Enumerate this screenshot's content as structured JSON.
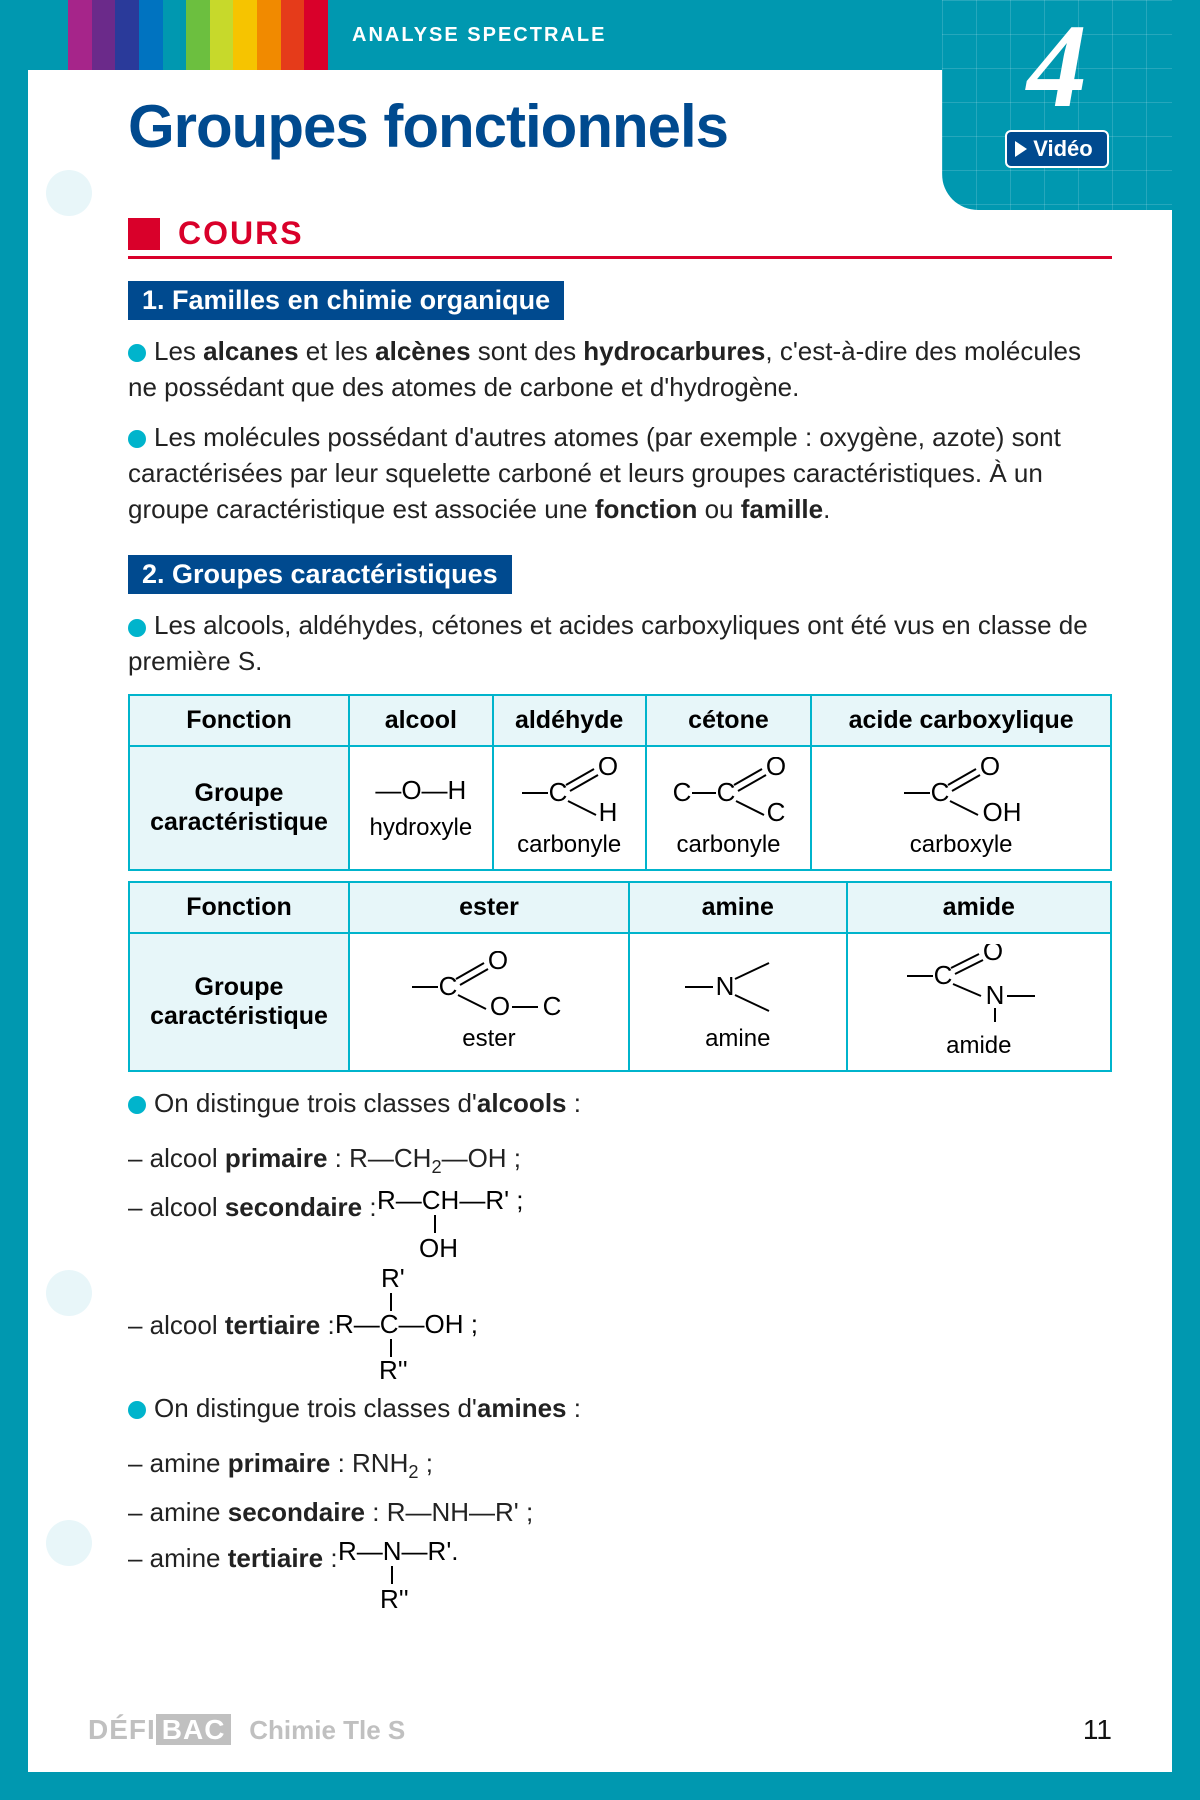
{
  "colors": {
    "border": "#0098b0",
    "deepblue": "#004a8f",
    "red": "#d9002a",
    "cyan": "#00b4cc",
    "lightcyan": "#e7f6f9"
  },
  "rainbow": [
    "#a6258a",
    "#6b2a8a",
    "#2a3a9a",
    "#0073c0",
    "#0098b0",
    "#6cbf3f",
    "#c7d92b",
    "#f6c400",
    "#f18a00",
    "#e53b1a",
    "#d9002a"
  ],
  "breadcrumb": "ANALYSE SPECTRALE",
  "chapter_number": "4",
  "video_label": "Vidéo",
  "title": "Groupes fonctionnels",
  "cours_label": "COURS",
  "h1": "1. Familles en chimie organique",
  "p1a_pre": "Les ",
  "p1a_b1": "alcanes",
  "p1a_mid1": " et les ",
  "p1a_b2": "alcènes",
  "p1a_mid2": " sont des ",
  "p1a_b3": "hydrocarbures",
  "p1a_post": ", c'est-à-dire des molécules ne possédant que des atomes de carbone et d'hydrogène.",
  "p1b": "Les molécules possédant d'autres atomes (par exemple : oxygène, azote) sont caractérisées par leur squelette carboné et leurs groupes caractéristiques. À un groupe caractéristique est associée une ",
  "p1b_b1": "fonction",
  "p1b_mid": " ou ",
  "p1b_b2": "famille",
  "p1b_end": ".",
  "h2": "2. Groupes caractéristiques",
  "p2": "Les alcools, aldéhydes, cétones et acides carboxyliques ont été vus en classe de première S.",
  "table1": {
    "head": [
      "Fonction",
      "alcool",
      "aldéhyde",
      "cétone",
      "acide carboxylique"
    ],
    "rowhead": "Groupe caractéristique",
    "names": [
      "hydroxyle",
      "carbonyle",
      "carbonyle",
      "carboxyle"
    ]
  },
  "table2": {
    "head": [
      "Fonction",
      "ester",
      "amine",
      "amide"
    ],
    "rowhead": "Groupe caractéristique",
    "names": [
      "ester",
      "amine",
      "amide"
    ]
  },
  "p3_pre": "On distingue trois classes d'",
  "p3_b": "alcools",
  "p3_post": " :",
  "alc": [
    {
      "pre": "– alcool ",
      "b": "primaire",
      "post": " : R—CH",
      "sub": "2",
      "tail": "—OH ;"
    },
    {
      "pre": "– alcool ",
      "b": "secondaire",
      "post": " : ",
      "formula": "sec"
    },
    {
      "pre": "– alcool ",
      "b": "tertiaire",
      "post": " : ",
      "formula": "ter"
    }
  ],
  "p4_pre": "On distingue trois classes d'",
  "p4_b": "amines",
  "p4_post": " :",
  "amn": [
    {
      "pre": "– amine ",
      "b": "primaire",
      "post": " : RNH",
      "sub": "2",
      "tail": " ;"
    },
    {
      "pre": "– amine ",
      "b": "secondaire",
      "post": " : R—NH—R' ;"
    },
    {
      "pre": "– amine ",
      "b": "tertiaire",
      "post": " : ",
      "formula": "amnter"
    }
  ],
  "footer_brand_pre": "DÉFI",
  "footer_brand_box": "BAC",
  "footer_subject": "Chimie Tle S",
  "page_number": "11"
}
